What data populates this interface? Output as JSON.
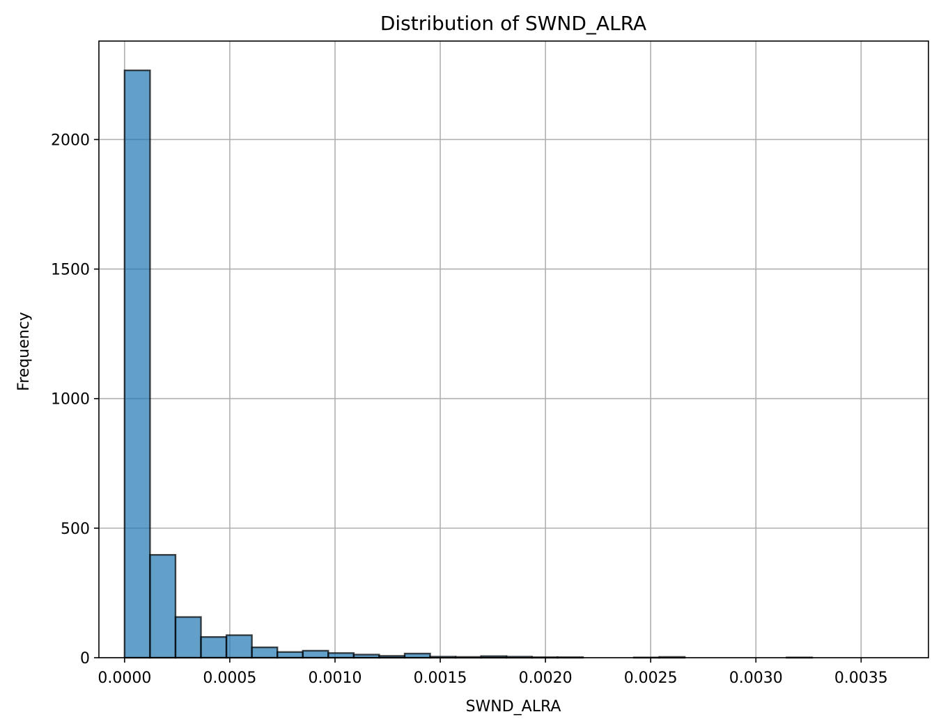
{
  "chart_data": {
    "type": "bar",
    "title": "Distribution of SWND_ALRA",
    "xlabel": "SWND_ALRA",
    "ylabel": "Frequency",
    "xlim": [
      -0.000122,
      0.00382
    ],
    "ylim": [
      0,
      2380
    ],
    "grid": true,
    "bar_color": "#1f77b4",
    "edge_color": "#000000",
    "xticks": [
      {
        "value": 0.0,
        "label": "0.0000"
      },
      {
        "value": 0.0005,
        "label": "0.0005"
      },
      {
        "value": 0.001,
        "label": "0.0010"
      },
      {
        "value": 0.0015,
        "label": "0.0015"
      },
      {
        "value": 0.002,
        "label": "0.0020"
      },
      {
        "value": 0.0025,
        "label": "0.0025"
      },
      {
        "value": 0.003,
        "label": "0.0030"
      },
      {
        "value": 0.0035,
        "label": "0.0035"
      }
    ],
    "yticks": [
      {
        "value": 0,
        "label": "0"
      },
      {
        "value": 500,
        "label": "500"
      },
      {
        "value": 1000,
        "label": "1000"
      },
      {
        "value": 1500,
        "label": "1500"
      },
      {
        "value": 2000,
        "label": "2000"
      }
    ],
    "bins": [
      {
        "start": 0.0,
        "end": 0.000121,
        "count": 2267
      },
      {
        "start": 0.000121,
        "end": 0.000242,
        "count": 397
      },
      {
        "start": 0.000242,
        "end": 0.000363,
        "count": 157
      },
      {
        "start": 0.000363,
        "end": 0.000484,
        "count": 80
      },
      {
        "start": 0.000484,
        "end": 0.000605,
        "count": 87
      },
      {
        "start": 0.000605,
        "end": 0.000726,
        "count": 40
      },
      {
        "start": 0.000726,
        "end": 0.000847,
        "count": 22
      },
      {
        "start": 0.000847,
        "end": 0.000968,
        "count": 27
      },
      {
        "start": 0.000968,
        "end": 0.001089,
        "count": 18
      },
      {
        "start": 0.001089,
        "end": 0.00121,
        "count": 12
      },
      {
        "start": 0.00121,
        "end": 0.001331,
        "count": 7
      },
      {
        "start": 0.001331,
        "end": 0.001452,
        "count": 16
      },
      {
        "start": 0.001452,
        "end": 0.001573,
        "count": 4
      },
      {
        "start": 0.001573,
        "end": 0.001694,
        "count": 3
      },
      {
        "start": 0.001694,
        "end": 0.001815,
        "count": 6
      },
      {
        "start": 0.001815,
        "end": 0.001936,
        "count": 4
      },
      {
        "start": 0.001936,
        "end": 0.002057,
        "count": 2
      },
      {
        "start": 0.002057,
        "end": 0.002178,
        "count": 2
      },
      {
        "start": 0.002178,
        "end": 0.002299,
        "count": 0
      },
      {
        "start": 0.002299,
        "end": 0.00242,
        "count": 0
      },
      {
        "start": 0.00242,
        "end": 0.002541,
        "count": 1
      },
      {
        "start": 0.002541,
        "end": 0.002662,
        "count": 3
      },
      {
        "start": 0.002662,
        "end": 0.002783,
        "count": 0
      },
      {
        "start": 0.002783,
        "end": 0.002904,
        "count": 0
      },
      {
        "start": 0.002904,
        "end": 0.003025,
        "count": 0
      },
      {
        "start": 0.003025,
        "end": 0.003146,
        "count": 0
      },
      {
        "start": 0.003146,
        "end": 0.003267,
        "count": 1
      },
      {
        "start": 0.003267,
        "end": 0.003388,
        "count": 0
      },
      {
        "start": 0.003388,
        "end": 0.003509,
        "count": 0
      },
      {
        "start": 0.003509,
        "end": 0.00363,
        "count": 0
      }
    ]
  }
}
